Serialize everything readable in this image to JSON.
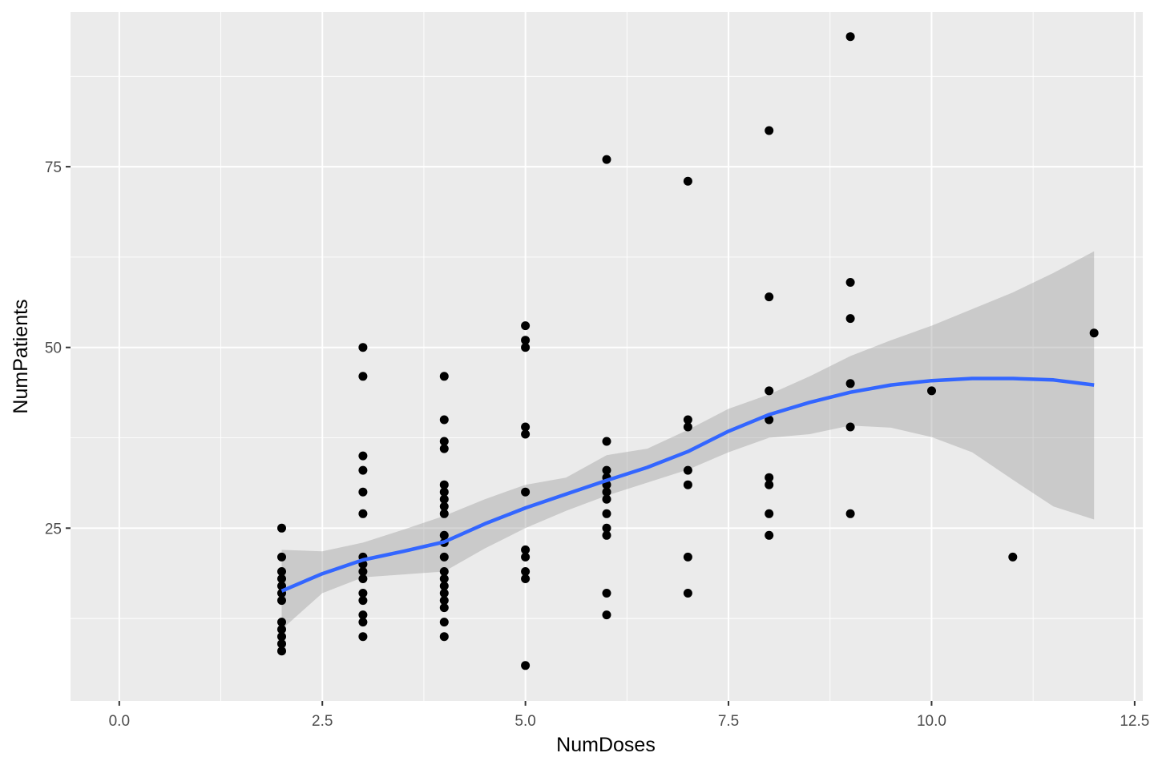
{
  "chart_data": {
    "type": "scatter",
    "title": "",
    "xlabel": "NumDoses",
    "ylabel": "NumPatients",
    "xlim": [
      -0.6,
      12.6
    ],
    "ylim": [
      1.1,
      96.4
    ],
    "x_ticks": [
      {
        "value": 0,
        "label": "0.0"
      },
      {
        "value": 2.5,
        "label": "2.5"
      },
      {
        "value": 5,
        "label": "5.0"
      },
      {
        "value": 7.5,
        "label": "7.5"
      },
      {
        "value": 10,
        "label": "10.0"
      },
      {
        "value": 12.5,
        "label": "12.5"
      }
    ],
    "y_ticks": [
      {
        "value": 25,
        "label": "25"
      },
      {
        "value": 50,
        "label": "50"
      },
      {
        "value": 75,
        "label": "75"
      }
    ],
    "grid": true,
    "colors": {
      "panel_background": "#ebebeb",
      "grid_major": "#ffffff",
      "points": "#000000",
      "smooth_line": "#3366ff",
      "confidence_band": "#999999"
    },
    "points": [
      [
        2,
        25
      ],
      [
        2,
        21
      ],
      [
        2,
        19
      ],
      [
        2,
        18
      ],
      [
        2,
        17
      ],
      [
        2,
        16
      ],
      [
        2,
        15
      ],
      [
        2,
        12
      ],
      [
        2,
        11
      ],
      [
        2,
        10
      ],
      [
        2,
        9
      ],
      [
        2,
        8
      ],
      [
        3,
        50
      ],
      [
        3,
        46
      ],
      [
        3,
        35
      ],
      [
        3,
        33
      ],
      [
        3,
        30
      ],
      [
        3,
        27
      ],
      [
        3,
        21
      ],
      [
        3,
        20
      ],
      [
        3,
        19
      ],
      [
        3,
        18
      ],
      [
        3,
        16
      ],
      [
        3,
        15
      ],
      [
        3,
        13
      ],
      [
        3,
        12
      ],
      [
        3,
        10
      ],
      [
        4,
        46
      ],
      [
        4,
        40
      ],
      [
        4,
        37
      ],
      [
        4,
        36
      ],
      [
        4,
        31
      ],
      [
        4,
        30
      ],
      [
        4,
        29
      ],
      [
        4,
        28
      ],
      [
        4,
        27
      ],
      [
        4,
        24
      ],
      [
        4,
        23
      ],
      [
        4,
        21
      ],
      [
        4,
        19
      ],
      [
        4,
        18
      ],
      [
        4,
        17
      ],
      [
        4,
        16
      ],
      [
        4,
        15
      ],
      [
        4,
        14
      ],
      [
        4,
        12
      ],
      [
        4,
        10
      ],
      [
        5,
        53
      ],
      [
        5,
        51
      ],
      [
        5,
        50
      ],
      [
        5,
        39
      ],
      [
        5,
        38
      ],
      [
        5,
        30
      ],
      [
        5,
        22
      ],
      [
        5,
        21
      ],
      [
        5,
        19
      ],
      [
        5,
        18
      ],
      [
        5,
        6
      ],
      [
        6,
        76
      ],
      [
        6,
        37
      ],
      [
        6,
        33
      ],
      [
        6,
        32
      ],
      [
        6,
        31
      ],
      [
        6,
        30
      ],
      [
        6,
        29
      ],
      [
        6,
        27
      ],
      [
        6,
        25
      ],
      [
        6,
        24
      ],
      [
        6,
        16
      ],
      [
        6,
        13
      ],
      [
        7,
        73
      ],
      [
        7,
        40
      ],
      [
        7,
        39
      ],
      [
        7,
        33
      ],
      [
        7,
        31
      ],
      [
        7,
        21
      ],
      [
        7,
        16
      ],
      [
        8,
        80
      ],
      [
        8,
        57
      ],
      [
        8,
        44
      ],
      [
        8,
        40
      ],
      [
        8,
        32
      ],
      [
        8,
        31
      ],
      [
        8,
        27
      ],
      [
        8,
        24
      ],
      [
        9,
        93
      ],
      [
        9,
        59
      ],
      [
        9,
        54
      ],
      [
        9,
        45
      ],
      [
        9,
        39
      ],
      [
        9,
        27
      ],
      [
        10,
        44
      ],
      [
        11,
        21
      ],
      [
        12,
        52
      ]
    ],
    "smooth": {
      "method": "loess",
      "x": [
        2.0,
        2.5,
        3.0,
        3.5,
        4.0,
        4.5,
        5.0,
        5.5,
        6.0,
        6.5,
        7.0,
        7.5,
        8.0,
        8.5,
        9.0,
        9.5,
        10.0,
        10.5,
        11.0,
        11.5,
        12.0
      ],
      "y": [
        16.3,
        18.7,
        20.6,
        21.8,
        23.1,
        25.6,
        27.8,
        29.7,
        31.6,
        33.4,
        35.6,
        38.4,
        40.7,
        42.4,
        43.8,
        44.8,
        45.4,
        45.7,
        45.7,
        45.5,
        44.8
      ],
      "lower": [
        11.0,
        16.0,
        18.2,
        18.6,
        19.0,
        22.2,
        25.0,
        27.4,
        29.5,
        31.3,
        33.1,
        35.5,
        37.5,
        38.0,
        39.2,
        38.9,
        37.6,
        35.5,
        31.7,
        28.0,
        26.2
      ],
      "upper": [
        22.0,
        21.8,
        23.0,
        24.8,
        26.7,
        29.0,
        31.0,
        32.0,
        35.1,
        36.0,
        38.6,
        41.5,
        43.5,
        46.0,
        48.8,
        51.0,
        53.0,
        55.3,
        57.6,
        60.3,
        63.3
      ]
    }
  }
}
